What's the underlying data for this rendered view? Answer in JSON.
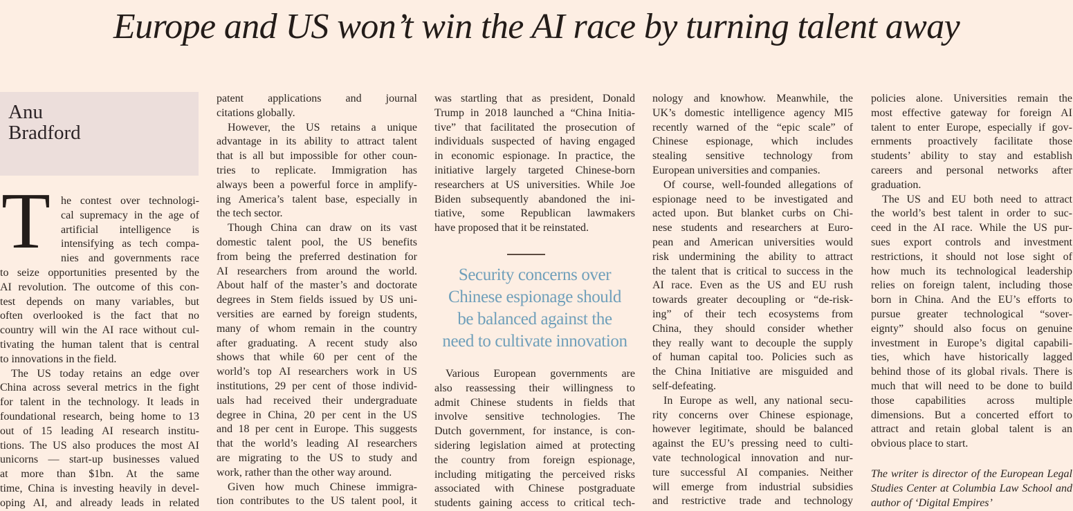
{
  "headline": "Europe and US won’t win the AI race by turning talent away",
  "byline": {
    "first": "Anu",
    "last": "Bradford"
  },
  "drop_cap": "T",
  "pull_quote": [
    "Security concerns over",
    "Chinese espionage should",
    "be balanced against the",
    "need to cultivate innovation"
  ],
  "colors": {
    "background": "#fdeee3",
    "byline_box": "#ecdedb",
    "pull_quote": "#6f9fba",
    "text": "#2b2420"
  },
  "columns": [
    {
      "paragraphs": [
        {
          "new_paragraph": false,
          "drop_cap_lines": 5,
          "continues": false,
          "lines": [
            "he contest over technologi-",
            "cal supremacy in the age of",
            "artificial intelligence is",
            "intensifying as tech compa-",
            "nies and governments race",
            "to seize opportunities presented by the",
            "AI revolution. The outcome of this con-",
            "test depends on many variables, but",
            "often overlooked is the fact that no",
            "country will win the AI race without cul-",
            "tivating the human talent that is central",
            "to innovations in the field."
          ]
        },
        {
          "new_paragraph": true,
          "continues": true,
          "lines": [
            "The US today retains an edge over",
            "China across several metrics in the fight",
            "for talent in the technology. It leads in",
            "foundational research, being home to 13",
            "out of 15 leading AI research institu-",
            "tions. The US also produces the most AI",
            "unicorns — start-up businesses valued",
            "at more than $1bn. At the same",
            "time, China is investing heavily in devel-",
            "oping AI, and already leads in related"
          ]
        }
      ]
    },
    {
      "paragraphs": [
        {
          "new_paragraph": false,
          "continues": false,
          "lines": [
            "patent applications and journal",
            "citations globally."
          ]
        },
        {
          "new_paragraph": true,
          "continues": false,
          "lines": [
            "However, the US retains a unique",
            "advantage in its ability to attract talent",
            "that is all but impossible for other coun-",
            "tries to replicate. Immigration has",
            "always been a powerful force in amplify-",
            "ing America’s talent base, especially in",
            "the tech sector."
          ]
        },
        {
          "new_paragraph": true,
          "continues": false,
          "lines": [
            "Though China can draw on its vast",
            "domestic talent pool, the US benefits",
            "from being the preferred destination for",
            "AI researchers from around the world.",
            "About half of the master’s and doctorate",
            "degrees in Stem fields issued by US uni-",
            "versities are earned by foreign students,",
            "many of whom remain in the country",
            "after graduating. A recent study also",
            "shows that while 60 per cent of the",
            "world’s top AI researchers work in US",
            "institutions, 29 per cent of those individ-",
            "uals had received their undergraduate",
            "degree in China, 20 per cent in the US",
            "and 18 per cent in Europe. This suggests",
            "that the world’s leading AI researchers",
            "are migrating to the US to study and",
            "work, rather than the other way around."
          ]
        },
        {
          "new_paragraph": true,
          "continues": true,
          "lines": [
            "Given how much Chinese immigra-",
            "tion contributes to the US talent pool, it"
          ]
        }
      ]
    },
    {
      "paragraphs": [
        {
          "new_paragraph": false,
          "continues": false,
          "lines": [
            "was startling that as president, Donald",
            "Trump in 2018 launched a “China Initia-",
            "tive” that facilitated the prosecution of",
            "individuals suspected of having engaged",
            "in economic espionage. In practice, the",
            "initiative largely targeted Chinese-born",
            "researchers at US universities. While Joe",
            "Biden subsequently abandoned the ini-",
            "tiative, some Republican lawmakers",
            "have proposed that it be reinstated."
          ]
        }
      ]
    },
    {
      "paragraphs": [
        {
          "new_paragraph": false,
          "continues": false,
          "lines": [
            "nology and knowhow. Meanwhile, the",
            "UK’s domestic intelligence agency MI5",
            "recently warned of the “epic scale” of",
            "Chinese espionage, which includes",
            "stealing sensitive technology from",
            "European universities and companies."
          ]
        },
        {
          "new_paragraph": true,
          "continues": false,
          "lines": [
            "Of course, well-founded allegations of",
            "espionage need to be investigated and",
            "acted upon. But blanket curbs on Chi-",
            "nese students and researchers at Euro-",
            "pean and American universities would",
            "risk undermining the ability to attract",
            "the talent that is critical to success in the",
            "AI race. Even as the US and EU rush",
            "towards greater decoupling or “de-risk-",
            "ing” of their tech ecosystems from",
            "China, they should consider whether",
            "they really want to decouple the supply",
            "of human capital too. Policies such as",
            "the China Initiative are misguided and",
            "self-defeating."
          ]
        },
        {
          "new_paragraph": true,
          "continues": true,
          "lines": [
            "In Europe as well, any national secu-",
            "rity concerns over Chinese espionage,",
            "however legitimate, should be balanced",
            "against the EU’s pressing need to culti-",
            "vate technological innovation and nur-",
            "ture successful AI companies. Neither",
            "will emerge from industrial subsidies",
            "and restrictive trade and technology"
          ]
        }
      ]
    },
    {
      "paragraphs": [
        {
          "new_paragraph": false,
          "continues": false,
          "lines": [
            "policies alone. Universities remain the",
            "most effective gateway for foreign AI",
            "talent to enter Europe, especially if gov-",
            "ernments proactively facilitate those",
            "students’ ability to stay and establish",
            "careers and personal networks after",
            "graduation."
          ]
        },
        {
          "new_paragraph": true,
          "continues": false,
          "lines": [
            "The US and EU both need to attract",
            "the world’s best talent in order to suc-",
            "ceed in the AI race. While the US pur-",
            "sues export controls and investment",
            "restrictions, it should not lose sight of",
            "how much its technological leadership",
            "relies on foreign talent, including those",
            "born in China. And the EU’s efforts to",
            "pursue greater technological “sover-",
            "eignty” should also focus on genuine",
            "investment in Europe’s digital capabili-",
            "ties, which have historically lagged",
            "behind those of its global rivals. There is",
            "much that will need to be done to build",
            "those capabilities across multiple",
            "dimensions. But a concerted effort to",
            "attract and retain global talent is an",
            "obvious place to start."
          ]
        }
      ]
    }
  ],
  "column3_after_quote": {
    "paragraphs": [
      {
        "new_paragraph": true,
        "continues": true,
        "lines": [
          "Various European governments are",
          "also reassessing their willingness to",
          "admit Chinese students in fields that",
          "involve sensitive technologies. The",
          "Dutch government, for instance, is con-",
          "sidering legislation aimed at protecting",
          "the country from foreign espionage,",
          "including mitigating the perceived risks",
          "associated with Chinese postgraduate",
          "students gaining access to critical tech-"
        ]
      }
    ]
  },
  "author_note": [
    "The writer is director of the European Legal",
    "Studies Center at Columbia Law School and",
    "author of ‘Digital Empires’"
  ]
}
